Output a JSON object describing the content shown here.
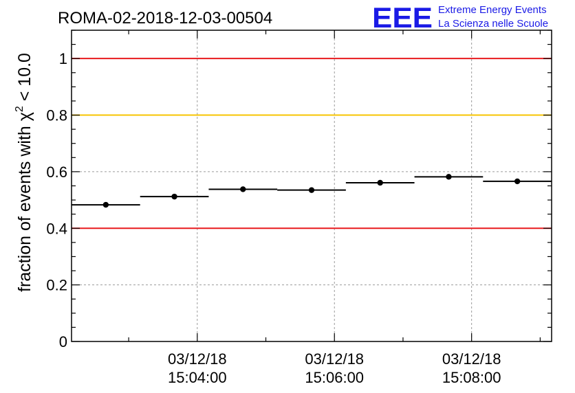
{
  "header": {
    "run_title": "ROMA-02-2018-12-03-00504",
    "logo_text": "EEE",
    "logo_line1": "Extreme Energy Events",
    "logo_line2": "La Scienza nelle Scuole"
  },
  "colors": {
    "red_line": "#e8191d",
    "orange_line": "#f7c400",
    "logo_blue": "#1a1ae6",
    "data": "#000000",
    "grid": "#9a9a9a"
  },
  "chart_data": {
    "type": "scatter",
    "title": "ROMA-02-2018-12-03-00504",
    "ylabel": {
      "prefix": "fraction of events with ",
      "symbol": "χ",
      "sup": "2",
      "suffix": " < 10.0"
    },
    "xlabel": "",
    "ylim": [
      0,
      1.1
    ],
    "xlim": [
      "15:02:10",
      "15:09:10"
    ],
    "grid": true,
    "y_ticks": [
      {
        "value": 0,
        "label": "0"
      },
      {
        "value": 0.2,
        "label": "0.2"
      },
      {
        "value": 0.4,
        "label": "0.4"
      },
      {
        "value": 0.6,
        "label": "0.6"
      },
      {
        "value": 0.8,
        "label": "0.8"
      },
      {
        "value": 1.0,
        "label": "1"
      }
    ],
    "x_ticks": [
      {
        "time": "15:04:00",
        "date_label": "03/12/18",
        "time_label": "15:04:00"
      },
      {
        "time": "15:06:00",
        "date_label": "03/12/18",
        "time_label": "15:06:00"
      },
      {
        "time": "15:08:00",
        "date_label": "03/12/18",
        "time_label": "15:08:00"
      }
    ],
    "reference_lines": [
      {
        "value": 1.0,
        "color": "#e8191d"
      },
      {
        "value": 0.8,
        "color": "#f7c400"
      },
      {
        "value": 0.4,
        "color": "#e8191d"
      }
    ],
    "points": [
      {
        "x_start": "15:02:10",
        "x_end": "15:03:10",
        "x": "15:02:40",
        "y": 0.483,
        "err": 0.008
      },
      {
        "x_start": "15:03:10",
        "x_end": "15:04:10",
        "x": "15:03:40",
        "y": 0.512,
        "err": 0.008
      },
      {
        "x_start": "15:04:10",
        "x_end": "15:05:10",
        "x": "15:04:40",
        "y": 0.538,
        "err": 0.008
      },
      {
        "x_start": "15:05:10",
        "x_end": "15:06:10",
        "x": "15:05:40",
        "y": 0.535,
        "err": 0.008
      },
      {
        "x_start": "15:06:10",
        "x_end": "15:07:10",
        "x": "15:06:40",
        "y": 0.561,
        "err": 0.008
      },
      {
        "x_start": "15:07:10",
        "x_end": "15:08:10",
        "x": "15:07:40",
        "y": 0.582,
        "err": 0.008
      },
      {
        "x_start": "15:08:10",
        "x_end": "15:09:10",
        "x": "15:08:40",
        "y": 0.566,
        "err": 0.008
      }
    ]
  }
}
